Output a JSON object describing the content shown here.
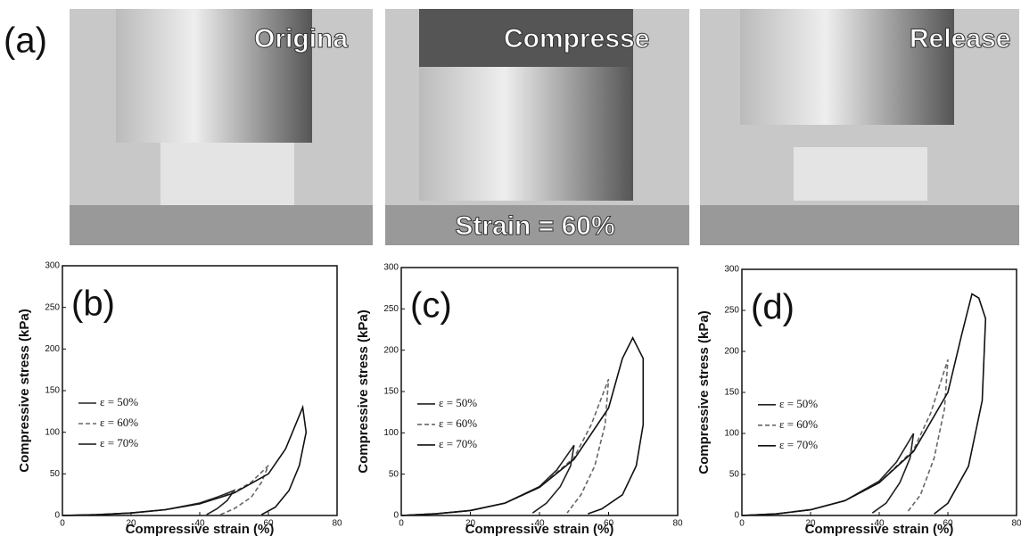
{
  "figure": {
    "label": "(a)",
    "photos": [
      {
        "caption": "Origina"
      },
      {
        "caption": "Compresse",
        "note": "Strain = 60%"
      },
      {
        "caption": "Release"
      }
    ]
  },
  "chart_data": [
    {
      "type": "line",
      "label": "(b)",
      "xlabel": "Compressive strain (%)",
      "ylabel": "Compressive stress (kPa)",
      "xlim": [
        0,
        80
      ],
      "ylim": [
        0,
        300
      ],
      "xticks": [
        0,
        20,
        40,
        60,
        80
      ],
      "yticks": [
        0,
        50,
        100,
        150,
        200,
        250,
        300
      ],
      "legend": "left",
      "series": [
        {
          "name": "ε = 50%",
          "color": "#222222",
          "x": [
            0,
            10,
            20,
            30,
            40,
            45,
            50,
            48,
            45,
            42
          ],
          "values": [
            0,
            1,
            3,
            7,
            15,
            22,
            30,
            18,
            8,
            1
          ]
        },
        {
          "name": "ε = 60%",
          "color": "#666666",
          "x": [
            0,
            10,
            20,
            30,
            40,
            50,
            55,
            60,
            58,
            55,
            50,
            46
          ],
          "values": [
            0,
            1,
            3,
            7,
            14,
            28,
            40,
            60,
            40,
            22,
            8,
            1
          ]
        },
        {
          "name": "ε = 70%",
          "color": "#111111",
          "x": [
            0,
            10,
            20,
            30,
            40,
            50,
            60,
            65,
            70,
            71,
            69,
            66,
            62,
            58
          ],
          "values": [
            0,
            1,
            3,
            7,
            14,
            27,
            50,
            80,
            130,
            100,
            60,
            30,
            10,
            1
          ]
        }
      ]
    },
    {
      "type": "line",
      "label": "(c)",
      "xlabel": "Compressive strain (%)",
      "ylabel": "Compressive stress (kPa)",
      "xlim": [
        0,
        80
      ],
      "ylim": [
        0,
        300
      ],
      "xticks": [
        0,
        20,
        40,
        60,
        80
      ],
      "yticks": [
        0,
        50,
        100,
        150,
        200,
        250,
        300
      ],
      "legend": "left",
      "series": [
        {
          "name": "ε = 50%",
          "color": "#222222",
          "x": [
            0,
            10,
            20,
            30,
            40,
            45,
            50,
            49,
            46,
            42,
            38
          ],
          "values": [
            0,
            2,
            6,
            15,
            35,
            55,
            85,
            60,
            35,
            15,
            3
          ]
        },
        {
          "name": "ε = 60%",
          "color": "#666666",
          "x": [
            0,
            10,
            20,
            30,
            40,
            50,
            55,
            60,
            59,
            56,
            52,
            48
          ],
          "values": [
            0,
            2,
            6,
            15,
            34,
            70,
            110,
            165,
            110,
            60,
            25,
            3
          ]
        },
        {
          "name": "ε = 70%",
          "color": "#111111",
          "x": [
            0,
            10,
            20,
            30,
            40,
            50,
            60,
            64,
            67,
            70,
            70,
            68,
            64,
            58,
            54
          ],
          "values": [
            0,
            2,
            6,
            15,
            34,
            68,
            130,
            190,
            215,
            190,
            110,
            60,
            25,
            8,
            2
          ]
        }
      ]
    },
    {
      "type": "line",
      "label": "(d)",
      "xlabel": "Compressive strain (%)",
      "ylabel": "Compressive stress (kPa)",
      "xlim": [
        0,
        80
      ],
      "ylim": [
        0,
        300
      ],
      "xticks": [
        0,
        20,
        40,
        60,
        80
      ],
      "yticks": [
        0,
        50,
        100,
        150,
        200,
        250,
        300
      ],
      "legend": "left",
      "series": [
        {
          "name": "ε = 50%",
          "color": "#222222",
          "x": [
            0,
            10,
            20,
            30,
            40,
            45,
            50,
            49,
            46,
            42,
            38
          ],
          "values": [
            0,
            2,
            7,
            18,
            42,
            65,
            100,
            70,
            40,
            15,
            3
          ]
        },
        {
          "name": "ε = 60%",
          "color": "#666666",
          "x": [
            0,
            10,
            20,
            30,
            40,
            50,
            55,
            60,
            59,
            56,
            52,
            48
          ],
          "values": [
            0,
            2,
            7,
            18,
            40,
            80,
            125,
            190,
            130,
            70,
            25,
            3
          ]
        },
        {
          "name": "ε = 70%",
          "color": "#111111",
          "x": [
            0,
            10,
            20,
            30,
            40,
            50,
            60,
            64,
            67,
            69,
            71,
            70,
            66,
            60,
            56
          ],
          "values": [
            0,
            2,
            7,
            18,
            40,
            78,
            150,
            220,
            270,
            265,
            240,
            140,
            60,
            15,
            2
          ]
        }
      ]
    }
  ]
}
